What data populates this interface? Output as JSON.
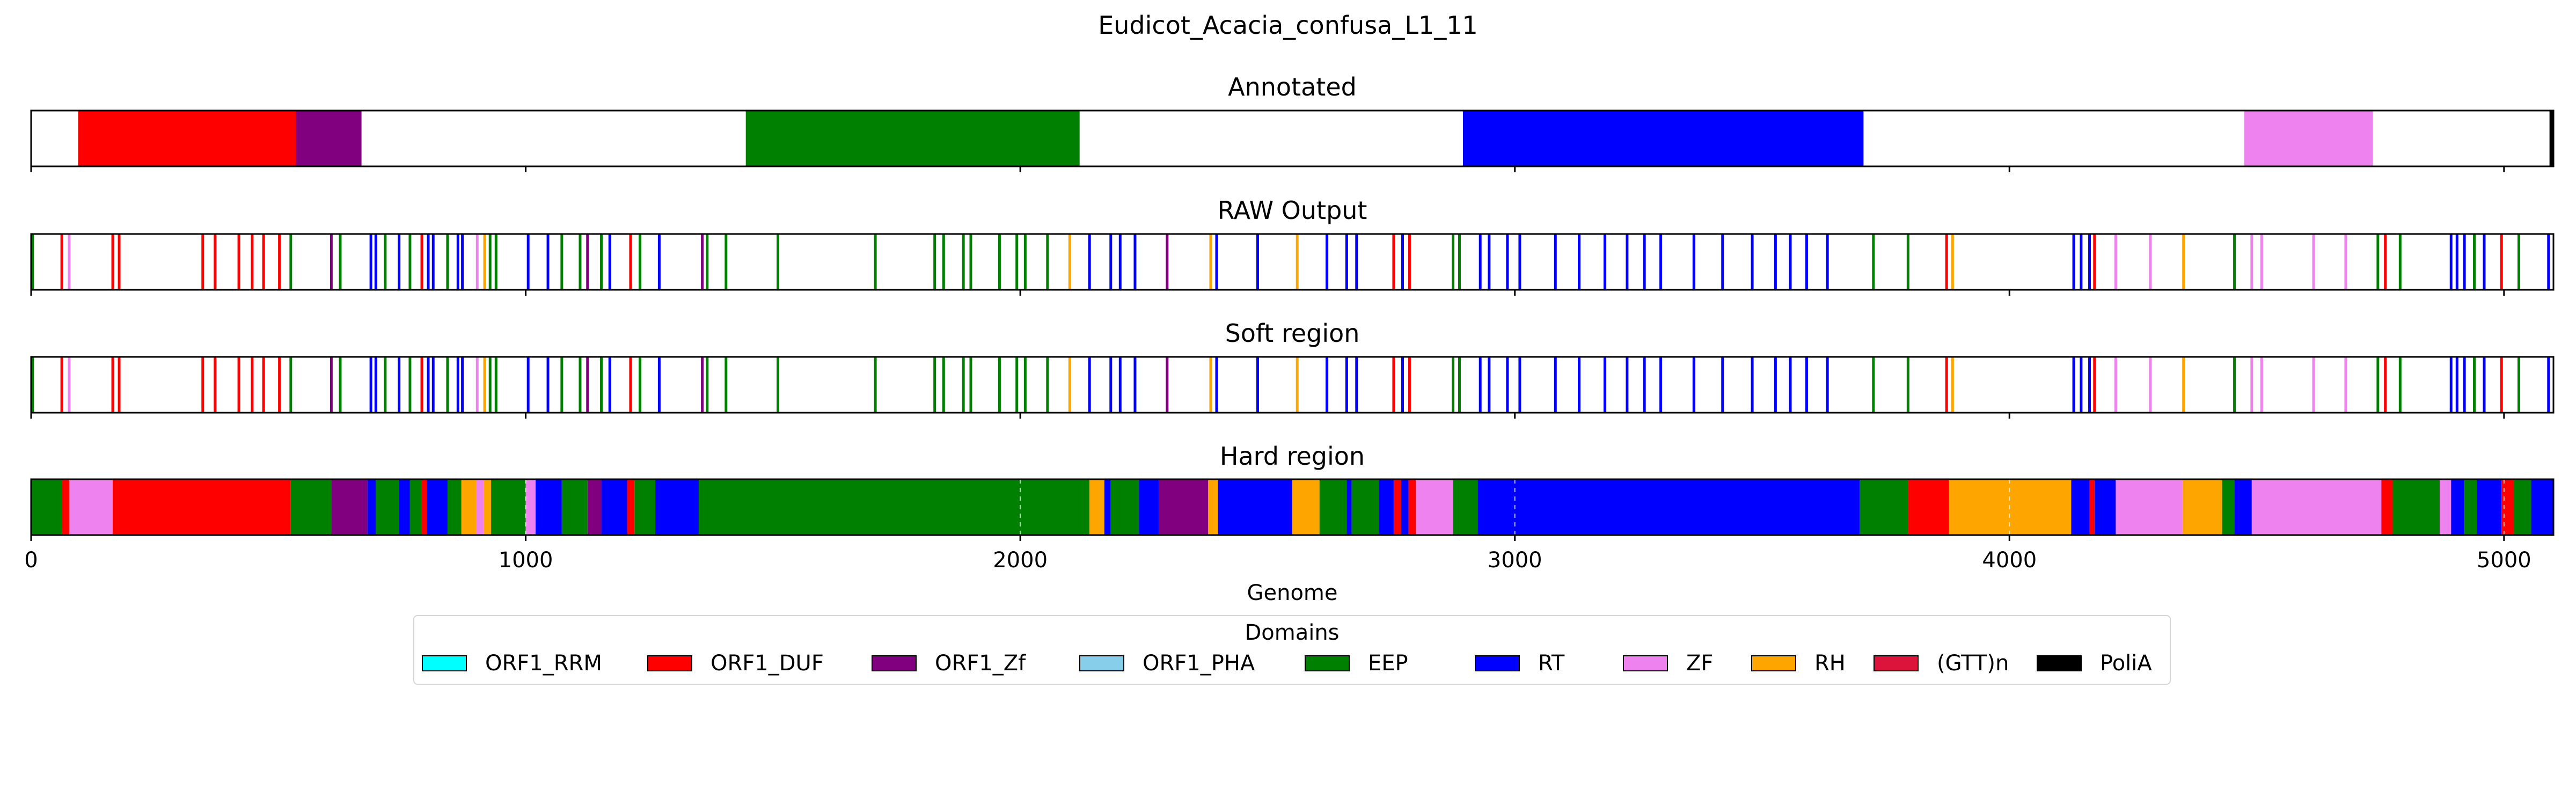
{
  "suptitle": "Eudicot_Acacia_confusa_L1_11",
  "domains_legend": {
    "title": "Domains",
    "items": [
      {
        "label": "ORF1_RRM",
        "color": "#00ffff"
      },
      {
        "label": "ORF1_DUF",
        "color": "#ff0000"
      },
      {
        "label": "ORF1_Zf",
        "color": "#800080"
      },
      {
        "label": "ORF1_PHA",
        "color": "#87ceeb"
      },
      {
        "label": "EEP",
        "color": "#008000"
      },
      {
        "label": "RT",
        "color": "#0000ff"
      },
      {
        "label": "ZF",
        "color": "#ee82ee"
      },
      {
        "label": "RH",
        "color": "#ffa500"
      },
      {
        "label": "(GTT)n",
        "color": "#dc143c"
      },
      {
        "label": "PoliA",
        "color": "#000000"
      }
    ]
  },
  "chart_data": [
    {
      "type": "bar",
      "title": "Annotated",
      "xlim": [
        0,
        5100
      ],
      "segments": [
        {
          "domain": "ORF1_DUF",
          "start": 95,
          "end": 535
        },
        {
          "domain": "ORF1_Zf",
          "start": 535,
          "end": 668
        },
        {
          "domain": "EEP",
          "start": 1445,
          "end": 2120
        },
        {
          "domain": "RT",
          "start": 2895,
          "end": 3705
        },
        {
          "domain": "ZF",
          "start": 4475,
          "end": 4735
        },
        {
          "domain": "PoliA",
          "start": 5092,
          "end": 5100
        }
      ]
    },
    {
      "type": "bar",
      "title": "RAW Output",
      "xlim": [
        0,
        5100
      ],
      "lines": [
        {
          "domain": "EEP",
          "x": 3
        },
        {
          "domain": "ORF1_DUF",
          "x": 62
        },
        {
          "domain": "ZF",
          "x": 77
        },
        {
          "domain": "ORF1_DUF",
          "x": 165
        },
        {
          "domain": "ORF1_DUF",
          "x": 178
        },
        {
          "domain": "ORF1_DUF",
          "x": 347
        },
        {
          "domain": "ORF1_DUF",
          "x": 372
        },
        {
          "domain": "ORF1_DUF",
          "x": 420
        },
        {
          "domain": "ORF1_DUF",
          "x": 447
        },
        {
          "domain": "ORF1_DUF",
          "x": 470
        },
        {
          "domain": "ORF1_DUF",
          "x": 502
        },
        {
          "domain": "EEP",
          "x": 525
        },
        {
          "domain": "ORF1_Zf",
          "x": 607
        },
        {
          "domain": "EEP",
          "x": 625
        },
        {
          "domain": "RT",
          "x": 687
        },
        {
          "domain": "RT",
          "x": 697
        },
        {
          "domain": "EEP",
          "x": 716
        },
        {
          "domain": "RT",
          "x": 744
        },
        {
          "domain": "EEP",
          "x": 766
        },
        {
          "domain": "ORF1_DUF",
          "x": 790
        },
        {
          "domain": "RT",
          "x": 803
        },
        {
          "domain": "RT",
          "x": 813
        },
        {
          "domain": "EEP",
          "x": 842
        },
        {
          "domain": "RT",
          "x": 863
        },
        {
          "domain": "RT",
          "x": 872
        },
        {
          "domain": "ZF",
          "x": 902
        },
        {
          "domain": "RH",
          "x": 917
        },
        {
          "domain": "EEP",
          "x": 928
        },
        {
          "domain": "EEP",
          "x": 940
        },
        {
          "domain": "RT",
          "x": 1005
        },
        {
          "domain": "RT",
          "x": 1045
        },
        {
          "domain": "EEP",
          "x": 1073
        },
        {
          "domain": "EEP",
          "x": 1110
        },
        {
          "domain": "ORF1_Zf",
          "x": 1125
        },
        {
          "domain": "EEP",
          "x": 1153
        },
        {
          "domain": "RT",
          "x": 1170
        },
        {
          "domain": "ORF1_DUF",
          "x": 1212
        },
        {
          "domain": "EEP",
          "x": 1231
        },
        {
          "domain": "RT",
          "x": 1270
        },
        {
          "domain": "ORF1_Zf",
          "x": 1357
        },
        {
          "domain": "EEP",
          "x": 1367
        },
        {
          "domain": "EEP",
          "x": 1405
        },
        {
          "domain": "EEP",
          "x": 1510
        },
        {
          "domain": "EEP",
          "x": 1707
        },
        {
          "domain": "EEP",
          "x": 1827
        },
        {
          "domain": "EEP",
          "x": 1845
        },
        {
          "domain": "EEP",
          "x": 1885
        },
        {
          "domain": "EEP",
          "x": 1900
        },
        {
          "domain": "EEP",
          "x": 1958
        },
        {
          "domain": "EEP",
          "x": 1993
        },
        {
          "domain": "EEP",
          "x": 2010
        },
        {
          "domain": "EEP",
          "x": 2055
        },
        {
          "domain": "RH",
          "x": 2100
        },
        {
          "domain": "RT",
          "x": 2140
        },
        {
          "domain": "RT",
          "x": 2183
        },
        {
          "domain": "RT",
          "x": 2202
        },
        {
          "domain": "RT",
          "x": 2232
        },
        {
          "domain": "ORF1_Zf",
          "x": 2297
        },
        {
          "domain": "RH",
          "x": 2385
        },
        {
          "domain": "RT",
          "x": 2397
        },
        {
          "domain": "RT",
          "x": 2480
        },
        {
          "domain": "RH",
          "x": 2560
        },
        {
          "domain": "RT",
          "x": 2620
        },
        {
          "domain": "RT",
          "x": 2660
        },
        {
          "domain": "RT",
          "x": 2680
        },
        {
          "domain": "ORF1_DUF",
          "x": 2755
        },
        {
          "domain": "RT",
          "x": 2773
        },
        {
          "domain": "ORF1_DUF",
          "x": 2787
        },
        {
          "domain": "EEP",
          "x": 2875
        },
        {
          "domain": "EEP",
          "x": 2888
        },
        {
          "domain": "RT",
          "x": 2930
        },
        {
          "domain": "RT",
          "x": 2948
        },
        {
          "domain": "RT",
          "x": 2985
        },
        {
          "domain": "RT",
          "x": 3010
        },
        {
          "domain": "RT",
          "x": 3082
        },
        {
          "domain": "RT",
          "x": 3130
        },
        {
          "domain": "RT",
          "x": 3182
        },
        {
          "domain": "RT",
          "x": 3227
        },
        {
          "domain": "RT",
          "x": 3262
        },
        {
          "domain": "RT",
          "x": 3295
        },
        {
          "domain": "RT",
          "x": 3362
        },
        {
          "domain": "RT",
          "x": 3420
        },
        {
          "domain": "RT",
          "x": 3480
        },
        {
          "domain": "RT",
          "x": 3527
        },
        {
          "domain": "RT",
          "x": 3557
        },
        {
          "domain": "RT",
          "x": 3590
        },
        {
          "domain": "RT",
          "x": 3632
        },
        {
          "domain": "EEP",
          "x": 3725
        },
        {
          "domain": "EEP",
          "x": 3795
        },
        {
          "domain": "ORF1_DUF",
          "x": 3873
        },
        {
          "domain": "RH",
          "x": 3885
        },
        {
          "domain": "RT",
          "x": 4130
        },
        {
          "domain": "RT",
          "x": 4145
        },
        {
          "domain": "RT",
          "x": 4162
        },
        {
          "domain": "ORF1_DUF",
          "x": 4172
        },
        {
          "domain": "ZF",
          "x": 4215
        },
        {
          "domain": "ZF",
          "x": 4285
        },
        {
          "domain": "RH",
          "x": 4352
        },
        {
          "domain": "EEP",
          "x": 4455
        },
        {
          "domain": "ZF",
          "x": 4490
        },
        {
          "domain": "ZF",
          "x": 4510
        },
        {
          "domain": "ZF",
          "x": 4615
        },
        {
          "domain": "ZF",
          "x": 4680
        },
        {
          "domain": "EEP",
          "x": 4745
        },
        {
          "domain": "ORF1_DUF",
          "x": 4760
        },
        {
          "domain": "EEP",
          "x": 4790
        },
        {
          "domain": "RT",
          "x": 4893
        },
        {
          "domain": "RT",
          "x": 4905
        },
        {
          "domain": "RT",
          "x": 4920
        },
        {
          "domain": "EEP",
          "x": 4940
        },
        {
          "domain": "RT",
          "x": 4960
        },
        {
          "domain": "ORF1_DUF",
          "x": 4995
        },
        {
          "domain": "EEP",
          "x": 5030
        },
        {
          "domain": "RT",
          "x": 5090
        }
      ]
    },
    {
      "type": "bar",
      "title": "Soft region",
      "xlim": [
        0,
        5100
      ],
      "lines_same_as": "RAW Output"
    },
    {
      "type": "bar",
      "title": "Hard region",
      "xlim": [
        0,
        5100
      ],
      "xlabel": "Genome",
      "xticks": [
        0,
        1000,
        2000,
        3000,
        4000,
        5000
      ],
      "segments": [
        {
          "domain": "EEP",
          "start": 0,
          "end": 62
        },
        {
          "domain": "ORF1_DUF",
          "start": 62,
          "end": 77
        },
        {
          "domain": "ZF",
          "start": 77,
          "end": 165
        },
        {
          "domain": "ORF1_DUF",
          "start": 165,
          "end": 525
        },
        {
          "domain": "EEP",
          "start": 525,
          "end": 607
        },
        {
          "domain": "ORF1_Zf",
          "start": 607,
          "end": 680
        },
        {
          "domain": "RT",
          "start": 680,
          "end": 697
        },
        {
          "domain": "EEP",
          "start": 697,
          "end": 744
        },
        {
          "domain": "RT",
          "start": 744,
          "end": 766
        },
        {
          "domain": "EEP",
          "start": 766,
          "end": 790
        },
        {
          "domain": "ORF1_DUF",
          "start": 790,
          "end": 800
        },
        {
          "domain": "RT",
          "start": 800,
          "end": 842
        },
        {
          "domain": "EEP",
          "start": 842,
          "end": 870
        },
        {
          "domain": "RH",
          "start": 870,
          "end": 900
        },
        {
          "domain": "ZF",
          "start": 900,
          "end": 915
        },
        {
          "domain": "RH",
          "start": 915,
          "end": 930
        },
        {
          "domain": "EEP",
          "start": 930,
          "end": 1000
        },
        {
          "domain": "ZF",
          "start": 1000,
          "end": 1020
        },
        {
          "domain": "RT",
          "start": 1020,
          "end": 1073
        },
        {
          "domain": "EEP",
          "start": 1073,
          "end": 1125
        },
        {
          "domain": "ORF1_Zf",
          "start": 1125,
          "end": 1153
        },
        {
          "domain": "RT",
          "start": 1153,
          "end": 1205
        },
        {
          "domain": "ORF1_DUF",
          "start": 1205,
          "end": 1220
        },
        {
          "domain": "EEP",
          "start": 1220,
          "end": 1262
        },
        {
          "domain": "RT",
          "start": 1262,
          "end": 1350
        },
        {
          "domain": "EEP",
          "start": 1350,
          "end": 2140
        },
        {
          "domain": "RH",
          "start": 2140,
          "end": 2170
        },
        {
          "domain": "RT",
          "start": 2170,
          "end": 2183
        },
        {
          "domain": "EEP",
          "start": 2183,
          "end": 2240
        },
        {
          "domain": "RT",
          "start": 2240,
          "end": 2280
        },
        {
          "domain": "ORF1_Zf",
          "start": 2280,
          "end": 2380
        },
        {
          "domain": "RH",
          "start": 2380,
          "end": 2400
        },
        {
          "domain": "RT",
          "start": 2400,
          "end": 2550
        },
        {
          "domain": "RH",
          "start": 2550,
          "end": 2605
        },
        {
          "domain": "EEP",
          "start": 2605,
          "end": 2660
        },
        {
          "domain": "RT",
          "start": 2660,
          "end": 2670
        },
        {
          "domain": "EEP",
          "start": 2670,
          "end": 2725
        },
        {
          "domain": "RT",
          "start": 2725,
          "end": 2755
        },
        {
          "domain": "ORF1_DUF",
          "start": 2755,
          "end": 2770
        },
        {
          "domain": "RT",
          "start": 2770,
          "end": 2785
        },
        {
          "domain": "ORF1_DUF",
          "start": 2785,
          "end": 2800
        },
        {
          "domain": "ZF",
          "start": 2800,
          "end": 2875
        },
        {
          "domain": "EEP",
          "start": 2875,
          "end": 2925
        },
        {
          "domain": "RT",
          "start": 2925,
          "end": 3697
        },
        {
          "domain": "EEP",
          "start": 3697,
          "end": 3795
        },
        {
          "domain": "ORF1_DUF",
          "start": 3795,
          "end": 3878
        },
        {
          "domain": "RH",
          "start": 3878,
          "end": 4125
        },
        {
          "domain": "RT",
          "start": 4125,
          "end": 4162
        },
        {
          "domain": "ORF1_DUF",
          "start": 4162,
          "end": 4172
        },
        {
          "domain": "RT",
          "start": 4172,
          "end": 4215
        },
        {
          "domain": "ZF",
          "start": 4215,
          "end": 4350
        },
        {
          "domain": "RH",
          "start": 4350,
          "end": 4430
        },
        {
          "domain": "EEP",
          "start": 4430,
          "end": 4455
        },
        {
          "domain": "RT",
          "start": 4455,
          "end": 4490
        },
        {
          "domain": "ZF",
          "start": 4490,
          "end": 4752
        },
        {
          "domain": "ORF1_DUF",
          "start": 4752,
          "end": 4775
        },
        {
          "domain": "EEP",
          "start": 4775,
          "end": 4870
        },
        {
          "domain": "ZF",
          "start": 4870,
          "end": 4893
        },
        {
          "domain": "RT",
          "start": 4893,
          "end": 4920
        },
        {
          "domain": "EEP",
          "start": 4920,
          "end": 4945
        },
        {
          "domain": "RT",
          "start": 4945,
          "end": 4995
        },
        {
          "domain": "ORF1_DUF",
          "start": 4995,
          "end": 5020
        },
        {
          "domain": "EEP",
          "start": 5020,
          "end": 5055
        },
        {
          "domain": "RT",
          "start": 5055,
          "end": 5100
        }
      ]
    }
  ]
}
